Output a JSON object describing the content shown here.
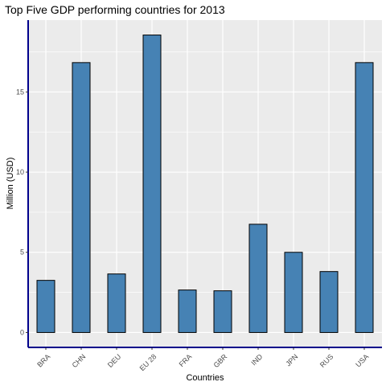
{
  "chart_data": {
    "type": "bar",
    "title": "Top Five GDP performing countries for 2013",
    "xlabel": "Countries",
    "ylabel": "Million (USD)",
    "categories": [
      "BRA",
      "CHN",
      "DEU",
      "EU 28",
      "FRA",
      "GBR",
      "IND",
      "JPN",
      "RUS",
      "USA"
    ],
    "values": [
      3.25,
      16.83,
      3.65,
      18.55,
      2.65,
      2.6,
      6.75,
      5.0,
      3.8,
      16.83
    ],
    "y_ticks": [
      0,
      5,
      10,
      15
    ],
    "ylim": [
      -0.93,
      19.48
    ],
    "grid": true,
    "colors": {
      "bar_fill": "#4682b4",
      "bar_stroke": "#000000",
      "panel_background": "#ebebeb",
      "grid": "#ffffff",
      "axis_line": "#00008b"
    }
  }
}
